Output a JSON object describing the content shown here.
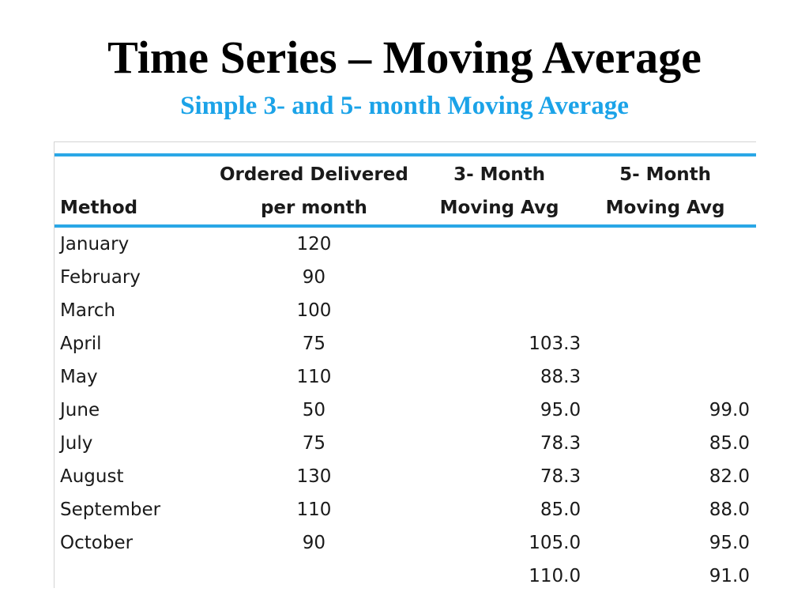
{
  "title": "Time Series – Moving Average",
  "subtitle": "Simple 3- and 5- month Moving Average",
  "colors": {
    "subtitle": "#1ba3e8",
    "rule": "#2aa7e6"
  },
  "table": {
    "headers": {
      "method": "Method",
      "ordered_line1": "Ordered Delivered",
      "ordered_line2": "per month",
      "ma3_line1": "3- Month",
      "ma3_line2": "Moving Avg",
      "ma5_line1": "5- Month",
      "ma5_line2": "Moving Avg"
    },
    "rows": [
      {
        "method": "January",
        "ordered": "120",
        "ma3": "",
        "ma5": ""
      },
      {
        "method": "February",
        "ordered": "90",
        "ma3": "",
        "ma5": ""
      },
      {
        "method": "March",
        "ordered": "100",
        "ma3": "",
        "ma5": ""
      },
      {
        "method": "April",
        "ordered": "75",
        "ma3": "103.3",
        "ma5": ""
      },
      {
        "method": "May",
        "ordered": "110",
        "ma3": "88.3",
        "ma5": ""
      },
      {
        "method": "June",
        "ordered": "50",
        "ma3": "95.0",
        "ma5": "99.0"
      },
      {
        "method": "July",
        "ordered": "75",
        "ma3": "78.3",
        "ma5": "85.0"
      },
      {
        "method": "August",
        "ordered": "130",
        "ma3": "78.3",
        "ma5": "82.0"
      },
      {
        "method": "September",
        "ordered": "110",
        "ma3": "85.0",
        "ma5": "88.0"
      },
      {
        "method": "October",
        "ordered": "90",
        "ma3": "105.0",
        "ma5": "95.0"
      },
      {
        "method": "",
        "ordered": "",
        "ma3": "110.0",
        "ma5": "91.0"
      }
    ]
  }
}
